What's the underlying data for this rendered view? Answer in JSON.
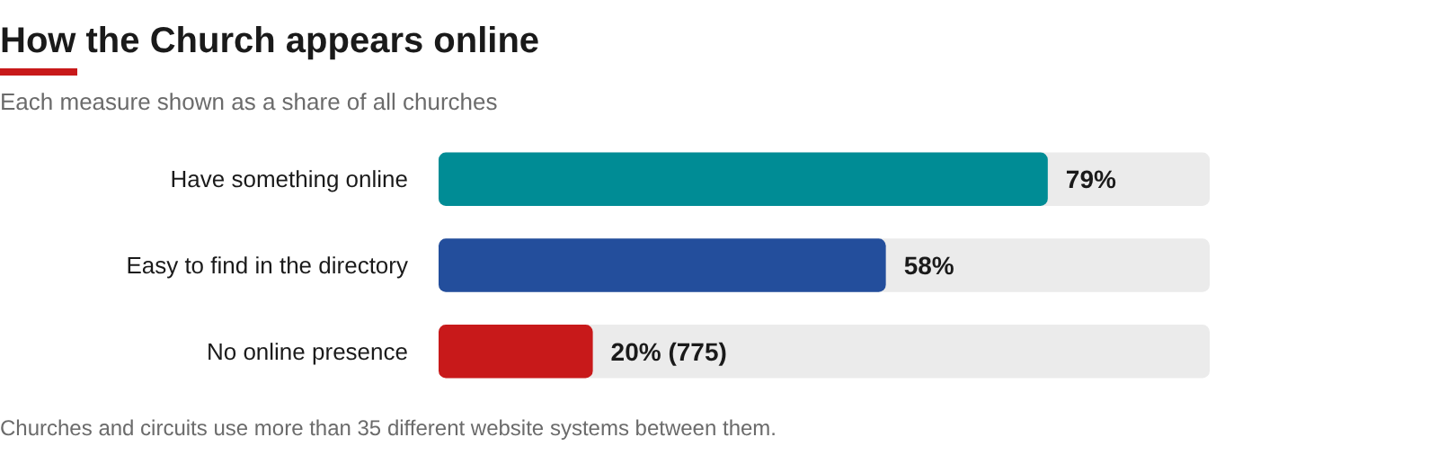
{
  "chart_data": {
    "type": "bar",
    "orientation": "horizontal",
    "title": "How the Church appears online",
    "subtitle": "Each measure shown as a share of all churches",
    "categories": [
      "Have something online",
      "Easy to find in the directory",
      "No online presence"
    ],
    "values": [
      79,
      58,
      20
    ],
    "colors": [
      "#008c95",
      "#234e9c",
      "#c8191a"
    ],
    "value_labels": [
      "79%",
      "58%",
      "20% (775)"
    ],
    "xlim": [
      0,
      100
    ],
    "annotations": [
      "Churches and circuits use more than 35 different website systems between them."
    ]
  }
}
